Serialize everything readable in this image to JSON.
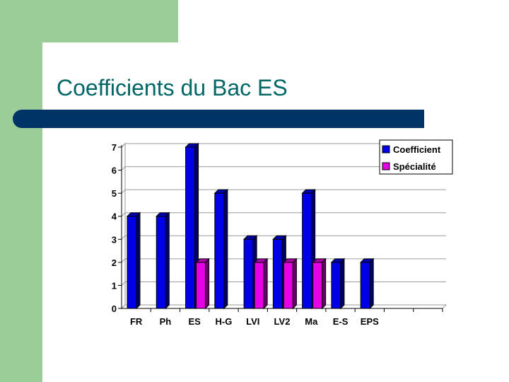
{
  "slide": {
    "title": "Coefficients du Bac ES"
  },
  "colors": {
    "accent": "#9ccc98",
    "title_text": "#006666",
    "rule": "#003366",
    "coefficient": "#0000e6",
    "specialite": "#e600e6"
  },
  "chart_data": {
    "type": "bar",
    "categories": [
      "FR",
      "Ph",
      "ES",
      "H-G",
      "LVI",
      "LV2",
      "Ma",
      "E-S",
      "EPS",
      "",
      ""
    ],
    "series": [
      {
        "name": "Coefficient",
        "values": [
          4,
          4,
          7,
          5,
          3,
          3,
          5,
          2,
          2,
          null,
          null
        ]
      },
      {
        "name": "Spécialité",
        "values": [
          null,
          null,
          2,
          null,
          2,
          2,
          2,
          null,
          null,
          null,
          null
        ]
      }
    ],
    "yticks": [
      0,
      1,
      2,
      3,
      4,
      5,
      6,
      7
    ],
    "ylim": [
      0,
      7
    ],
    "grid": true,
    "legend": "top-right",
    "bar_style": "3d"
  }
}
